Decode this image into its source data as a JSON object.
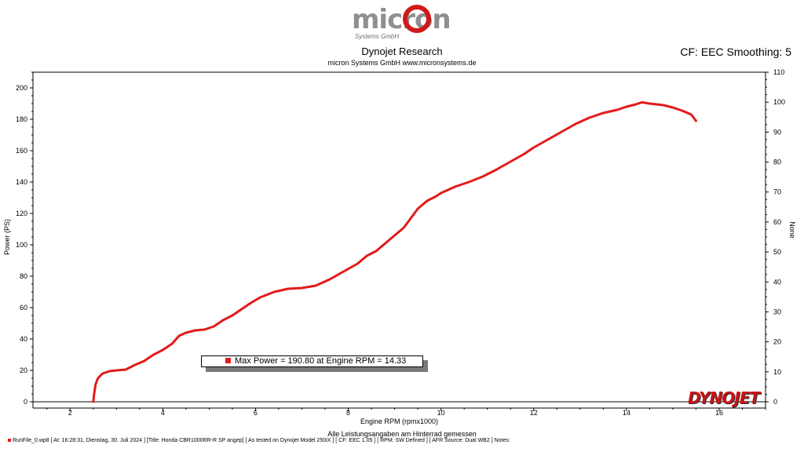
{
  "header": {
    "logo_text": "micron",
    "logo_subtext": "Systems GmbH",
    "title": "Dynojet Research",
    "subtitle": "micron Systems GmbH  www.micronsystems.de",
    "cf_info": "CF: EEC Smoothing: 5"
  },
  "footer": {
    "note": "Alle Leistungsangaben am Hinterrad gemessen",
    "status_line": "RunFile_0.wp8 [ At: 16:28:31, Dienstag, 30. Juli 2024 ] [Title: Honda CBR1000RR-R SP angep]   [ As tested on Dynojet Model 250iX ] [ CF: EEC 1.05 ] [ RPM: SW Defined ] [ AFR Source: Dual WB2 ] Notes:",
    "brand_logo": "DYNOJET"
  },
  "legend_text": "Max Power = 190.80 at Engine RPM = 14.33",
  "colors": {
    "series": "#e31a1a",
    "logo_accent": "#d11919"
  },
  "chart_data": {
    "type": "line",
    "xlabel": "Engine RPM (rpmx1000)",
    "ylabel": "Power (PS)",
    "y2label": "None",
    "xlim": [
      1.2,
      17.0
    ],
    "ylim": [
      0,
      210
    ],
    "y2lim": [
      0,
      110
    ],
    "xticks": [
      2,
      4,
      6,
      8,
      10,
      12,
      14,
      16
    ],
    "yticks": [
      0,
      20,
      40,
      60,
      80,
      100,
      120,
      140,
      160,
      180,
      200
    ],
    "y2ticks": [
      0,
      10,
      20,
      30,
      40,
      50,
      60,
      70,
      80,
      90,
      100,
      110
    ],
    "grid": false,
    "series": [
      {
        "name": "Power",
        "x": [
          2.5,
          2.52,
          2.55,
          2.6,
          2.7,
          2.85,
          3.0,
          3.2,
          3.4,
          3.6,
          3.8,
          4.0,
          4.2,
          4.35,
          4.5,
          4.7,
          4.9,
          5.1,
          5.3,
          5.5,
          5.7,
          5.9,
          6.1,
          6.4,
          6.7,
          7.0,
          7.3,
          7.6,
          7.9,
          8.2,
          8.4,
          8.6,
          8.8,
          9.0,
          9.2,
          9.4,
          9.5,
          9.7,
          9.9,
          10.0,
          10.3,
          10.6,
          10.9,
          11.2,
          11.5,
          11.8,
          12.0,
          12.3,
          12.6,
          12.9,
          13.2,
          13.5,
          13.8,
          14.0,
          14.2,
          14.33,
          14.5,
          14.8,
          15.0,
          15.2,
          15.4,
          15.5
        ],
        "y": [
          0,
          5,
          11,
          15,
          18,
          19.5,
          20,
          20.5,
          23.5,
          26,
          30,
          33,
          37,
          42,
          44,
          45.5,
          46,
          48,
          52,
          55,
          59,
          63,
          66.5,
          70,
          72,
          72.5,
          74,
          78,
          83,
          88,
          93,
          96,
          101,
          106,
          111,
          119,
          123,
          128,
          131,
          133,
          137,
          140,
          143.5,
          148,
          153,
          158,
          162,
          167,
          172,
          177,
          181,
          184,
          186,
          188,
          189.5,
          190.8,
          190,
          189,
          187.5,
          185.5,
          183,
          179
        ]
      }
    ]
  }
}
